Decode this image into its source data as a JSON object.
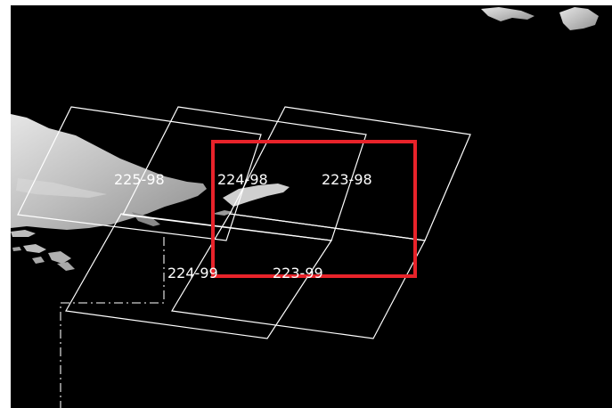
{
  "map": {
    "background_color": "#000000",
    "land_color": "#c8c8c8",
    "footprint_color": "#ffffff",
    "selection_color": "#e8232a",
    "border_style": "dash-dot",
    "scene_labels": {
      "s225_98": "225-98",
      "s224_98": "224-98",
      "s223_98": "223-98",
      "s224_99": "224-99",
      "s223_99": "223-99"
    }
  }
}
